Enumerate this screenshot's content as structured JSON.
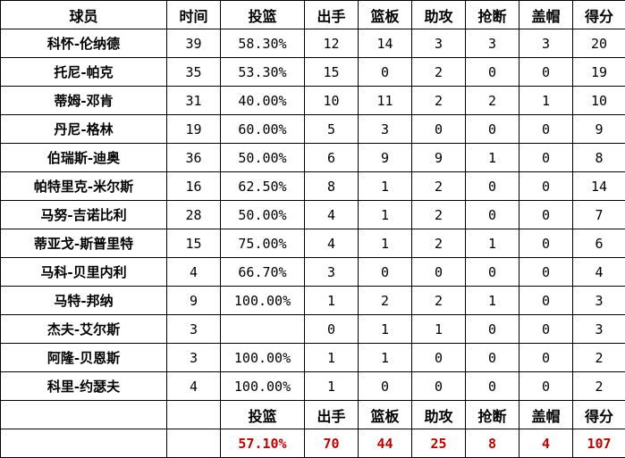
{
  "headers": [
    "球员",
    "时间",
    "投篮",
    "出手",
    "篮板",
    "助攻",
    "抢断",
    "盖帽",
    "得分"
  ],
  "rows": [
    [
      "科怀-伦纳德",
      "39",
      "58.30%",
      "12",
      "14",
      "3",
      "3",
      "3",
      "20"
    ],
    [
      "托尼-帕克",
      "35",
      "53.30%",
      "15",
      "0",
      "2",
      "0",
      "0",
      "19"
    ],
    [
      "蒂姆-邓肯",
      "31",
      "40.00%",
      "10",
      "11",
      "2",
      "2",
      "1",
      "10"
    ],
    [
      "丹尼-格林",
      "19",
      "60.00%",
      "5",
      "3",
      "0",
      "0",
      "0",
      "9"
    ],
    [
      "伯瑞斯-迪奥",
      "36",
      "50.00%",
      "6",
      "9",
      "9",
      "1",
      "0",
      "8"
    ],
    [
      "帕特里克-米尔斯",
      "16",
      "62.50%",
      "8",
      "1",
      "2",
      "0",
      "0",
      "14"
    ],
    [
      "马努-吉诺比利",
      "28",
      "50.00%",
      "4",
      "1",
      "2",
      "0",
      "0",
      "7"
    ],
    [
      "蒂亚戈-斯普里特",
      "15",
      "75.00%",
      "4",
      "1",
      "2",
      "1",
      "0",
      "6"
    ],
    [
      "马科-贝里内利",
      "4",
      "66.70%",
      "3",
      "0",
      "0",
      "0",
      "0",
      "4"
    ],
    [
      "马特-邦纳",
      "9",
      "100.00%",
      "1",
      "2",
      "2",
      "1",
      "0",
      "3"
    ],
    [
      "杰夫-艾尔斯",
      "3",
      "",
      "0",
      "1",
      "1",
      "0",
      "0",
      "3"
    ],
    [
      "阿隆-贝恩斯",
      "3",
      "100.00%",
      "1",
      "1",
      "0",
      "0",
      "0",
      "2"
    ],
    [
      "科里-约瑟夫",
      "4",
      "100.00%",
      "1",
      "0",
      "0",
      "0",
      "0",
      "2"
    ]
  ],
  "totals_headers": [
    "投篮",
    "出手",
    "篮板",
    "助攻",
    "抢断",
    "盖帽",
    "得分"
  ],
  "totals": [
    "57.10%",
    "70",
    "44",
    "25",
    "8",
    "4",
    "107"
  ],
  "colors": {
    "totals": "#c00000"
  }
}
